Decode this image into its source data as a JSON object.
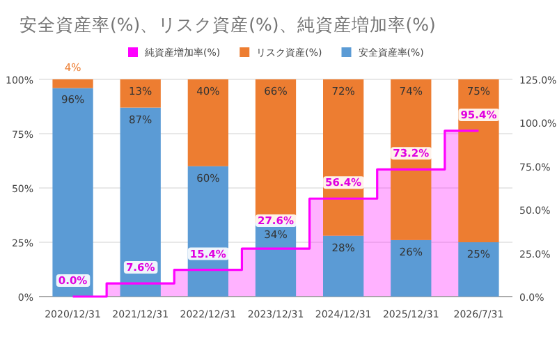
{
  "chart_data": {
    "type": "bar",
    "title": "安全資産率(%)、リスク資産(%)、純資産増加率(%)",
    "stacked": true,
    "categories": [
      "2020/12/31",
      "2021/12/31",
      "2022/12/31",
      "2023/12/31",
      "2024/12/31",
      "2025/12/31",
      "2026/7/31"
    ],
    "series": [
      {
        "name": "安全資産率(%)",
        "color": "#5b9bd5",
        "values": [
          96,
          87,
          60,
          34,
          28,
          26,
          25
        ],
        "value_labels": [
          "96%",
          "87%",
          "60%",
          "34%",
          "28%",
          "26%",
          "25%"
        ]
      },
      {
        "name": "リスク資産(%)",
        "color": "#ed7d31",
        "values": [
          4,
          13,
          40,
          66,
          72,
          74,
          75
        ],
        "value_labels": [
          "4%",
          "13%",
          "40%",
          "66%",
          "72%",
          "74%",
          "75%"
        ]
      },
      {
        "name": "純資産増加率(%)",
        "type": "step",
        "axis": "y2",
        "color": "#ff00ff",
        "values": [
          0.0,
          7.6,
          15.4,
          27.6,
          56.4,
          73.2,
          95.4
        ],
        "value_labels": [
          "0.0%",
          "7.6%",
          "15.4%",
          "27.6%",
          "56.4%",
          "73.2%",
          "95.4%"
        ]
      }
    ],
    "ylim": [
      0,
      100
    ],
    "yticks": [
      {
        "value": 0,
        "label": "0%"
      },
      {
        "value": 25,
        "label": "25%"
      },
      {
        "value": 50,
        "label": "50%"
      },
      {
        "value": 75,
        "label": "75%"
      },
      {
        "value": 100,
        "label": "100%"
      }
    ],
    "y2lim": [
      0,
      125
    ],
    "y2ticks": [
      {
        "value": 0,
        "label": "0.0%"
      },
      {
        "value": 25,
        "label": "25.0%"
      },
      {
        "value": 50,
        "label": "50.0%"
      },
      {
        "value": 75,
        "label": "75.0%"
      },
      {
        "value": 100,
        "label": "100.0%"
      },
      {
        "value": 125,
        "label": "125.0%"
      }
    ],
    "grid": "y",
    "legend": "top",
    "data_labels": true
  }
}
